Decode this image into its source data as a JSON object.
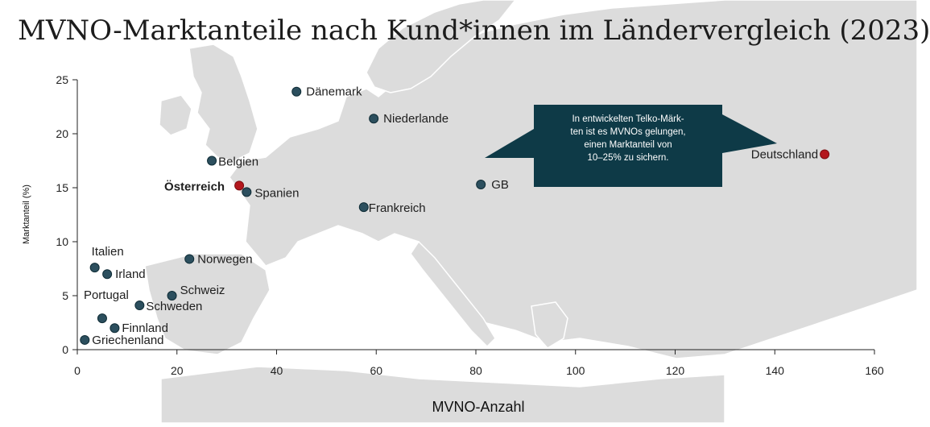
{
  "title": "MVNO-Marktanteile nach Kund*innen im Ländervergleich (2023)",
  "colors": {
    "point_default": "#2c4f5e",
    "point_highlight": "#b3171d",
    "callout_bg": "#0e3a47",
    "map_land": "#dcdcdc",
    "map_sea": "#ffffff"
  },
  "callout": {
    "lines": [
      "In entwickelten Telko-Märk-",
      "ten ist es MVNOs gelungen,",
      "einen Marktanteil von",
      "10–25% zu sichern."
    ]
  },
  "chart_data": {
    "type": "scatter",
    "title": "MVNO-Marktanteile nach Kund*innen im Ländervergleich (2023)",
    "xlabel": "MVNO-Anzahl",
    "ylabel": "Marktanteil (%)",
    "xlim": [
      0,
      160
    ],
    "ylim": [
      0,
      25
    ],
    "xticks": [
      0,
      20,
      40,
      60,
      80,
      100,
      120,
      140,
      160
    ],
    "yticks": [
      0,
      5,
      10,
      15,
      20,
      25
    ],
    "grid": false,
    "points": [
      {
        "label": "Dänemark",
        "x": 44,
        "y": 23.9,
        "highlight": false,
        "bold": false
      },
      {
        "label": "Niederlande",
        "x": 59.5,
        "y": 21.4,
        "highlight": false,
        "bold": false
      },
      {
        "label": "Deutschland",
        "x": 150,
        "y": 18.1,
        "highlight": true,
        "bold": false
      },
      {
        "label": "Belgien",
        "x": 27,
        "y": 17.5,
        "highlight": false,
        "bold": false
      },
      {
        "label": "Österreich",
        "x": 32.5,
        "y": 15.2,
        "highlight": true,
        "bold": true
      },
      {
        "label": "Spanien",
        "x": 34,
        "y": 14.6,
        "highlight": false,
        "bold": false
      },
      {
        "label": "GB",
        "x": 81,
        "y": 15.3,
        "highlight": false,
        "bold": false
      },
      {
        "label": "Frankreich",
        "x": 57.5,
        "y": 13.2,
        "highlight": false,
        "bold": false
      },
      {
        "label": "Norwegen",
        "x": 22.5,
        "y": 8.4,
        "highlight": false,
        "bold": false
      },
      {
        "label": "Italien",
        "x": 3.5,
        "y": 7.6,
        "highlight": false,
        "bold": false
      },
      {
        "label": "Irland",
        "x": 6,
        "y": 7.0,
        "highlight": false,
        "bold": false
      },
      {
        "label": "Schweiz",
        "x": 19,
        "y": 5.0,
        "highlight": false,
        "bold": false
      },
      {
        "label": "Schweden",
        "x": 12.5,
        "y": 4.1,
        "highlight": false,
        "bold": false
      },
      {
        "label": "Portugal",
        "x": 5,
        "y": 2.9,
        "highlight": false,
        "bold": false
      },
      {
        "label": "Finnland",
        "x": 7.5,
        "y": 2.0,
        "highlight": false,
        "bold": false
      },
      {
        "label": "Griechenland",
        "x": 1.5,
        "y": 0.9,
        "highlight": false,
        "bold": false
      }
    ]
  }
}
